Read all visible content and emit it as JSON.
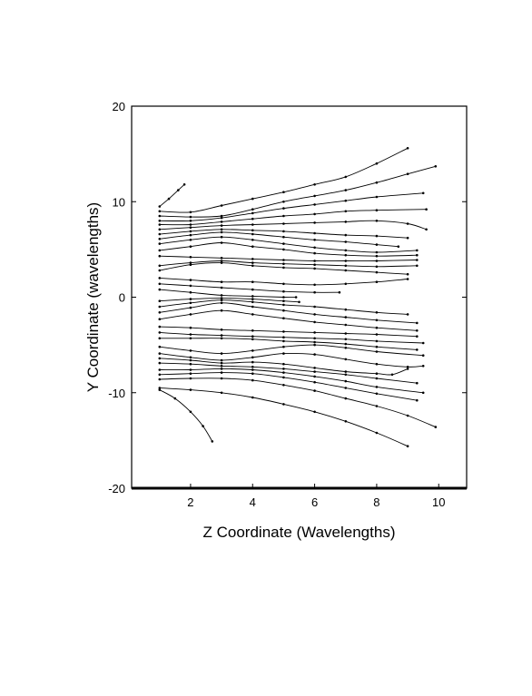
{
  "chart_data": {
    "type": "line",
    "title": "",
    "xlabel": "Z Coordinate (Wavelengths)",
    "ylabel": "Y Coordinate (wavelengths)",
    "xlim": [
      0.1,
      10.9
    ],
    "ylim": [
      -20,
      20
    ],
    "xticks": [
      2,
      4,
      6,
      8,
      10
    ],
    "yticks": [
      -20,
      -10,
      0,
      10,
      20
    ],
    "xtick_labels": [
      "2",
      "4",
      "6",
      "8",
      "10"
    ],
    "ytick_labels": [
      "-20",
      "-10",
      "0",
      "10",
      "20"
    ],
    "grid": false,
    "legend": "none",
    "markers": "small dots along each trajectory",
    "line_color": "#000000",
    "series": [
      {
        "x": [
          1.0,
          1.3,
          1.6,
          1.8
        ],
        "y": [
          9.5,
          10.3,
          11.2,
          11.8
        ]
      },
      {
        "x": [
          1.0,
          2.0,
          3.0,
          4.0,
          5.0,
          6.0,
          7.0,
          8.0,
          9.0
        ],
        "y": [
          9.0,
          8.9,
          9.6,
          10.3,
          11.0,
          11.8,
          12.6,
          14.0,
          15.6
        ]
      },
      {
        "x": [
          1.0,
          2.0,
          3.0,
          4.0,
          5.0,
          6.0,
          7.0,
          8.0,
          9.0,
          9.9
        ],
        "y": [
          8.5,
          8.4,
          8.5,
          9.2,
          10.0,
          10.6,
          11.2,
          12.0,
          12.9,
          13.7
        ]
      },
      {
        "x": [
          1.0,
          2.0,
          3.0,
          4.0,
          5.0,
          6.0,
          7.0,
          8.0,
          9.5
        ],
        "y": [
          8.0,
          8.0,
          8.3,
          8.8,
          9.3,
          9.7,
          10.1,
          10.5,
          10.9
        ]
      },
      {
        "x": [
          1.0,
          2.0,
          3.0,
          4.0,
          5.0,
          6.0,
          7.0,
          8.0,
          9.6
        ],
        "y": [
          7.6,
          7.6,
          7.9,
          8.2,
          8.5,
          8.7,
          9.0,
          9.1,
          9.2
        ]
      },
      {
        "x": [
          1.0,
          2.0,
          3.0,
          4.0,
          5.0,
          6.0,
          7.0,
          8.0,
          9.0,
          9.6
        ],
        "y": [
          7.1,
          7.3,
          7.5,
          7.6,
          7.7,
          7.8,
          7.9,
          8.0,
          7.7,
          7.1
        ]
      },
      {
        "x": [
          1.0,
          2.0,
          3.0,
          4.0,
          5.0,
          6.0,
          7.0,
          8.0,
          9.0
        ],
        "y": [
          6.6,
          6.9,
          7.1,
          7.0,
          6.9,
          6.7,
          6.5,
          6.4,
          6.2
        ]
      },
      {
        "x": [
          1.0,
          2.0,
          3.0,
          4.0,
          5.0,
          6.0,
          7.0,
          8.0,
          8.7
        ],
        "y": [
          6.1,
          6.5,
          6.8,
          6.6,
          6.3,
          6.0,
          5.8,
          5.5,
          5.3
        ]
      },
      {
        "x": [
          1.0,
          2.0,
          3.0,
          4.0,
          5.0,
          6.0,
          7.0,
          8.0,
          9.3
        ],
        "y": [
          5.6,
          6.0,
          6.3,
          6.0,
          5.6,
          5.2,
          4.9,
          4.7,
          4.9
        ]
      },
      {
        "x": [
          1.0,
          2.0,
          3.0,
          4.0,
          5.0,
          6.0,
          7.0,
          8.0,
          9.3
        ],
        "y": [
          4.9,
          5.3,
          5.7,
          5.3,
          5.0,
          4.6,
          4.4,
          4.3,
          4.4
        ]
      },
      {
        "x": [
          1.0,
          2.0,
          3.0,
          4.0,
          5.0,
          6.0,
          7.0,
          8.0,
          9.3
        ],
        "y": [
          4.3,
          4.2,
          4.1,
          4.0,
          3.9,
          3.8,
          3.8,
          3.8,
          3.9
        ]
      },
      {
        "x": [
          1.0,
          2.0,
          3.0,
          4.0,
          5.0,
          6.0,
          7.0,
          8.0,
          9.3
        ],
        "y": [
          3.3,
          3.6,
          3.8,
          3.6,
          3.5,
          3.4,
          3.3,
          3.2,
          3.3
        ]
      },
      {
        "x": [
          1.0,
          2.0,
          3.0,
          4.0,
          5.0,
          6.0,
          7.0,
          8.0,
          9.0
        ],
        "y": [
          2.8,
          3.4,
          3.6,
          3.3,
          3.1,
          3.0,
          2.8,
          2.6,
          2.4
        ]
      },
      {
        "x": [
          1.0,
          2.0,
          3.0,
          4.0,
          5.0,
          6.0,
          7.0,
          8.0,
          9.0
        ],
        "y": [
          2.0,
          1.8,
          1.6,
          1.6,
          1.4,
          1.3,
          1.4,
          1.6,
          1.9
        ]
      },
      {
        "x": [
          1.0,
          2.0,
          3.0,
          4.0,
          5.0,
          6.0,
          6.8
        ],
        "y": [
          1.4,
          1.2,
          1.0,
          0.8,
          0.6,
          0.5,
          0.5
        ]
      },
      {
        "x": [
          1.0,
          2.0,
          3.0,
          4.0,
          5.0,
          5.4
        ],
        "y": [
          0.8,
          0.5,
          0.2,
          0.1,
          0.0,
          0.0
        ]
      },
      {
        "x": [
          1.0,
          2.0,
          3.0,
          4.0,
          5.0,
          5.5
        ],
        "y": [
          -0.4,
          -0.2,
          -0.1,
          -0.2,
          -0.4,
          -0.5
        ]
      },
      {
        "x": [
          1.0,
          2.0,
          3.0,
          4.0,
          5.0,
          6.0,
          7.0,
          8.0,
          9.0
        ],
        "y": [
          -1.0,
          -0.6,
          -0.3,
          -0.5,
          -0.8,
          -1.0,
          -1.3,
          -1.6,
          -1.8
        ]
      },
      {
        "x": [
          1.0,
          2.0,
          3.0,
          4.0,
          5.0,
          6.0,
          7.0,
          8.0,
          9.3
        ],
        "y": [
          -1.6,
          -1.1,
          -0.6,
          -1.0,
          -1.4,
          -1.8,
          -2.1,
          -2.4,
          -2.7
        ]
      },
      {
        "x": [
          1.0,
          2.0,
          3.0,
          4.0,
          5.0,
          6.0,
          7.0,
          8.0,
          9.3
        ],
        "y": [
          -2.3,
          -1.8,
          -1.4,
          -1.8,
          -2.2,
          -2.6,
          -2.9,
          -3.2,
          -3.5
        ]
      },
      {
        "x": [
          1.0,
          2.0,
          3.0,
          4.0,
          5.0,
          6.0,
          7.0,
          8.0,
          9.3
        ],
        "y": [
          -3.1,
          -3.2,
          -3.4,
          -3.5,
          -3.6,
          -3.7,
          -3.8,
          -3.9,
          -4.1
        ]
      },
      {
        "x": [
          1.0,
          2.0,
          3.0,
          4.0,
          5.0,
          6.0,
          7.0,
          8.0,
          9.5
        ],
        "y": [
          -3.7,
          -3.9,
          -4.0,
          -4.1,
          -4.2,
          -4.3,
          -4.4,
          -4.6,
          -4.8
        ]
      },
      {
        "x": [
          1.0,
          2.0,
          3.0,
          4.0,
          5.0,
          6.0,
          7.0,
          8.0,
          9.3
        ],
        "y": [
          -4.3,
          -4.3,
          -4.3,
          -4.4,
          -4.6,
          -4.7,
          -4.9,
          -5.2,
          -5.5
        ]
      },
      {
        "x": [
          1.0,
          2.0,
          3.0,
          4.0,
          5.0,
          6.0,
          7.0,
          8.0,
          9.5
        ],
        "y": [
          -5.2,
          -5.6,
          -5.9,
          -5.6,
          -5.2,
          -5.0,
          -5.3,
          -5.7,
          -6.1
        ]
      },
      {
        "x": [
          1.0,
          2.0,
          3.0,
          4.0,
          5.0,
          6.0,
          7.0,
          8.0,
          9.0,
          9.5
        ],
        "y": [
          -5.9,
          -6.3,
          -6.6,
          -6.3,
          -5.9,
          -6.0,
          -6.5,
          -7.0,
          -7.3,
          -7.2
        ]
      },
      {
        "x": [
          1.0,
          2.0,
          3.0,
          4.0,
          5.0,
          6.0,
          7.0,
          8.0,
          8.5,
          9.0
        ],
        "y": [
          -6.4,
          -6.6,
          -6.9,
          -6.8,
          -7.0,
          -7.4,
          -7.8,
          -8.0,
          -8.1,
          -7.5
        ]
      },
      {
        "x": [
          1.0,
          2.0,
          3.0,
          4.0,
          5.0,
          6.0,
          7.0,
          8.0,
          9.3
        ],
        "y": [
          -6.9,
          -7.0,
          -7.2,
          -7.3,
          -7.5,
          -7.8,
          -8.1,
          -8.5,
          -9.0
        ]
      },
      {
        "x": [
          1.0,
          2.0,
          3.0,
          4.0,
          5.0,
          6.0,
          7.0,
          8.0,
          9.5
        ],
        "y": [
          -7.6,
          -7.6,
          -7.5,
          -7.6,
          -7.9,
          -8.3,
          -8.8,
          -9.4,
          -10.0
        ]
      },
      {
        "x": [
          1.0,
          2.0,
          3.0,
          4.0,
          5.0,
          6.0,
          7.0,
          8.0,
          9.3
        ],
        "y": [
          -8.1,
          -8.0,
          -7.9,
          -8.0,
          -8.4,
          -8.9,
          -9.5,
          -10.1,
          -10.8
        ]
      },
      {
        "x": [
          1.0,
          2.0,
          3.0,
          4.0,
          5.0,
          6.0,
          7.0,
          8.0,
          9.0,
          9.9
        ],
        "y": [
          -8.6,
          -8.5,
          -8.5,
          -8.7,
          -9.2,
          -9.8,
          -10.6,
          -11.4,
          -12.4,
          -13.6
        ]
      },
      {
        "x": [
          1.0,
          2.0,
          3.0,
          4.0,
          5.0,
          6.0,
          7.0,
          8.0,
          9.0
        ],
        "y": [
          -9.5,
          -9.7,
          -10.0,
          -10.5,
          -11.2,
          -12.0,
          -13.0,
          -14.2,
          -15.6
        ]
      },
      {
        "x": [
          1.0,
          1.5,
          2.0,
          2.4,
          2.7
        ],
        "y": [
          -9.7,
          -10.6,
          -12.0,
          -13.5,
          -15.1
        ]
      }
    ]
  }
}
